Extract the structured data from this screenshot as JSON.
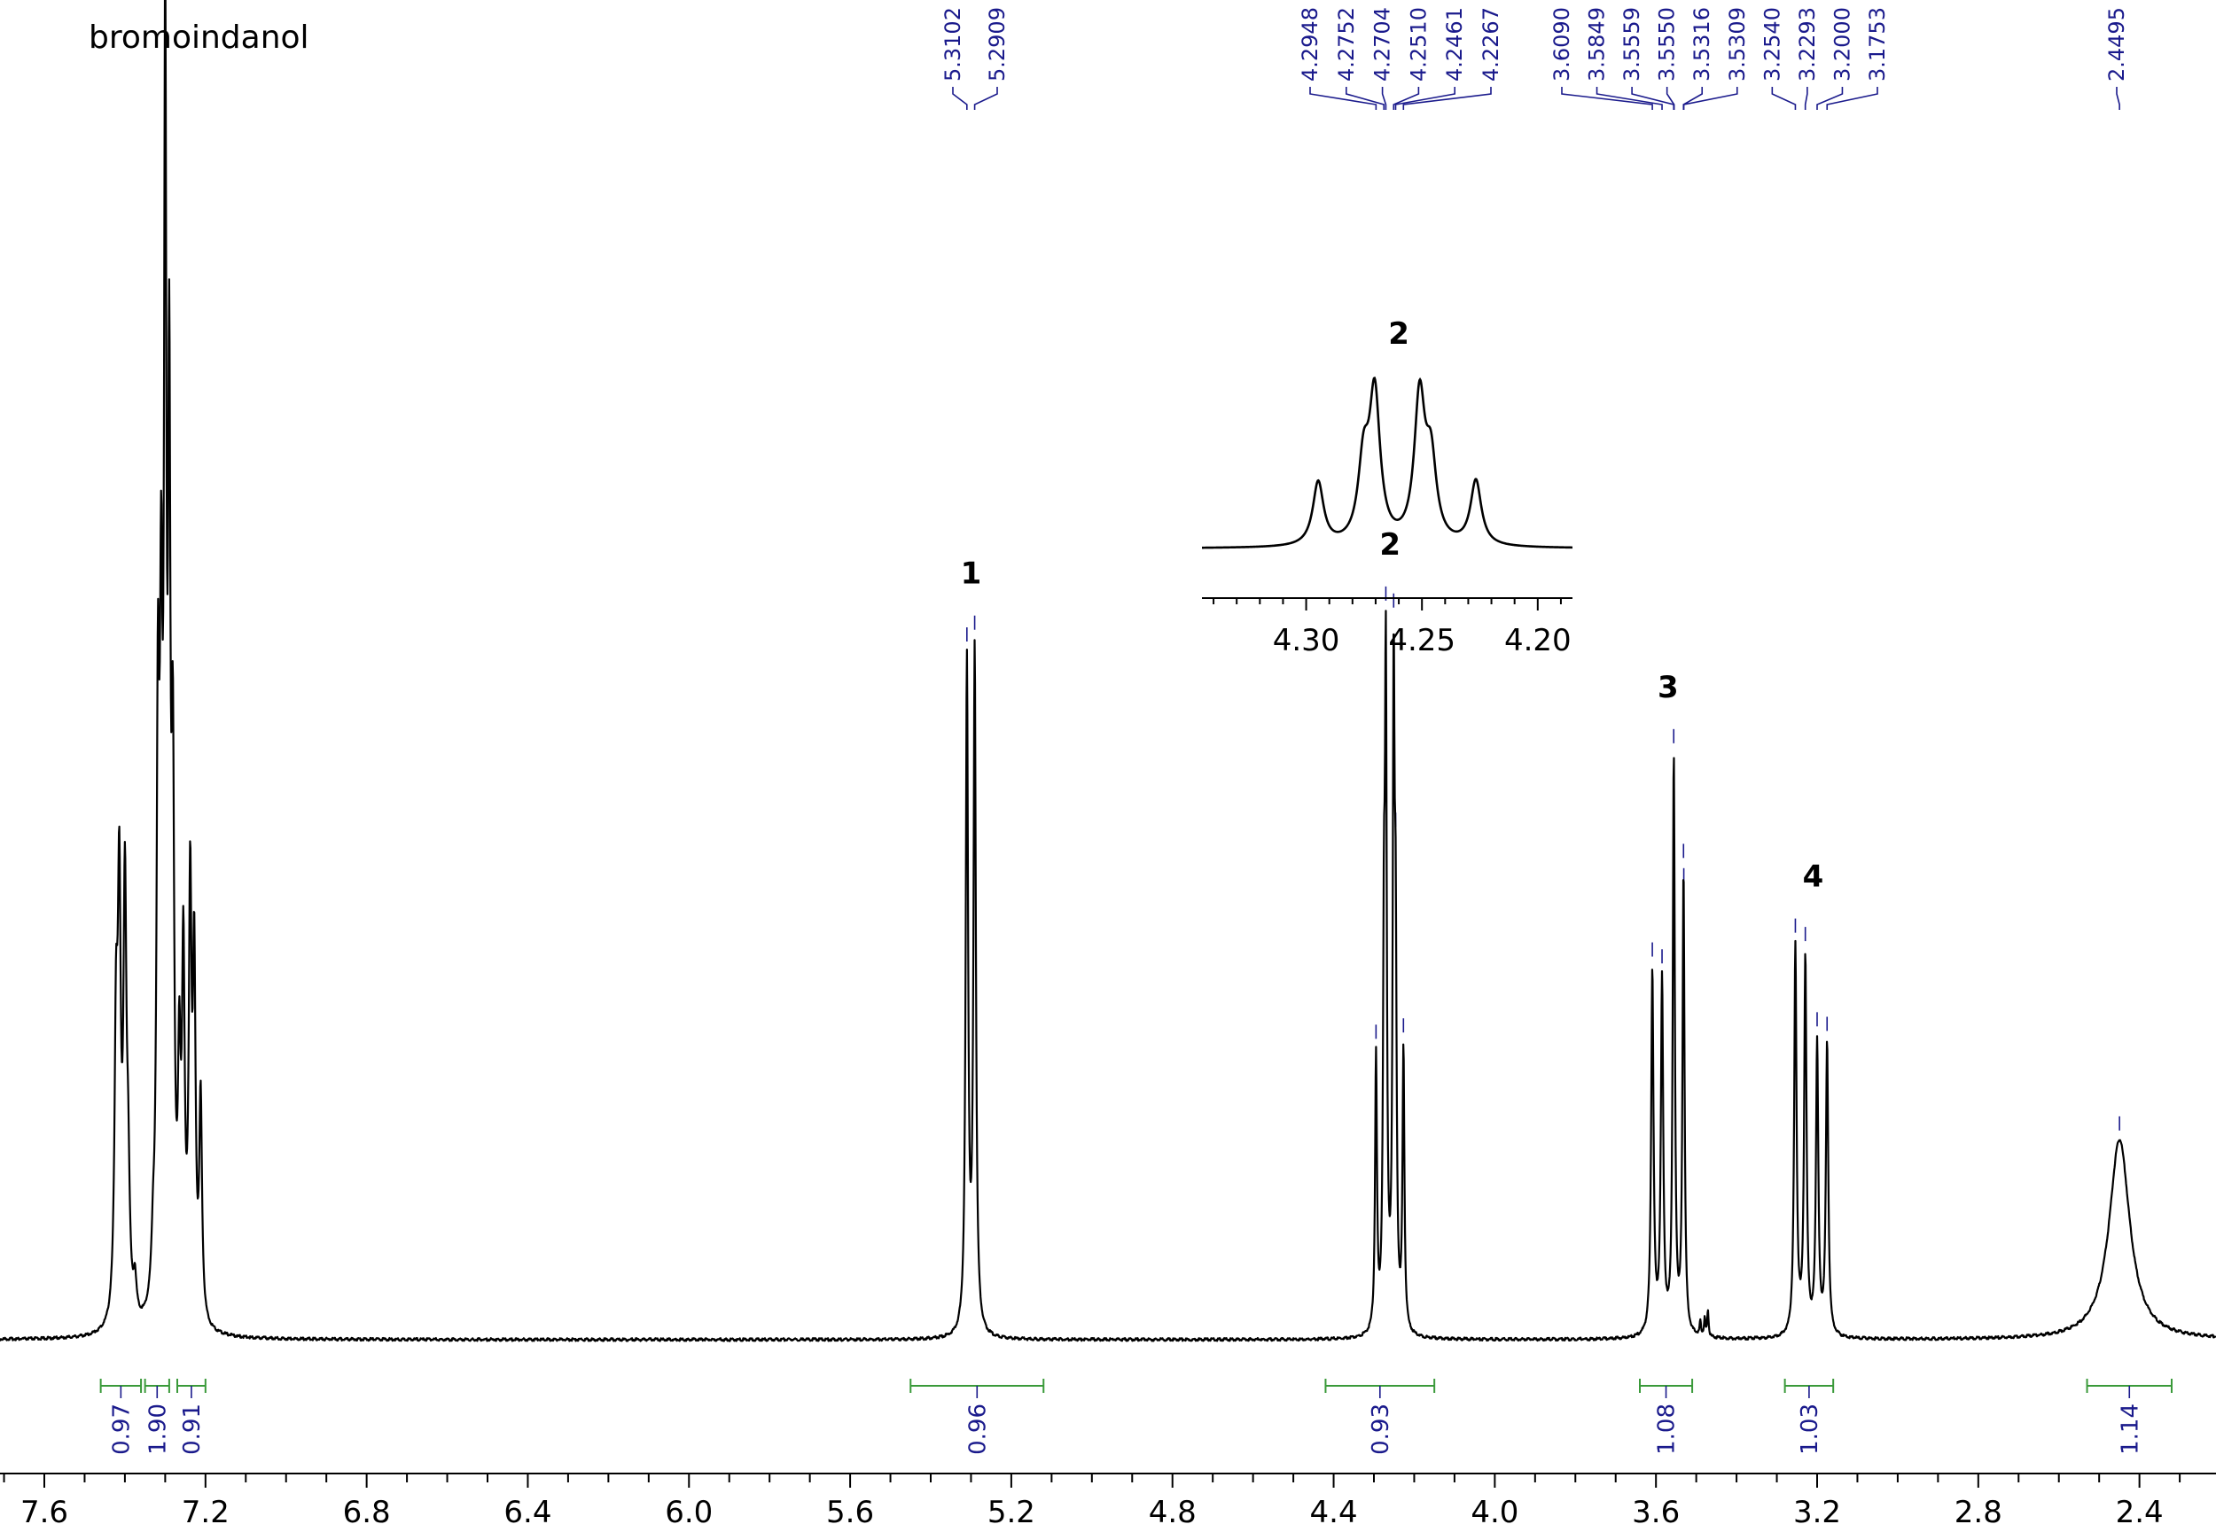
{
  "chart_data": {
    "type": "line",
    "title": "bromoindanol",
    "xlabel": "",
    "ylabel": "",
    "xlim": [
      7.71,
      2.21
    ],
    "xaxis_reversed": true,
    "xticks": [
      "7.6",
      "7.2",
      "6.8",
      "6.4",
      "6.0",
      "5.6",
      "5.2",
      "4.8",
      "4.4",
      "4.0",
      "3.6",
      "3.2",
      "2.8",
      "2.4"
    ],
    "grid": false,
    "peak_picks": [
      "5.3102",
      "5.2909",
      "4.2948",
      "4.2752",
      "4.2704",
      "4.2510",
      "4.2461",
      "4.2267",
      "3.6090",
      "3.5849",
      "3.5559",
      "3.5550",
      "3.5316",
      "3.5309",
      "3.2540",
      "3.2293",
      "3.2000",
      "3.1753",
      "2.4495"
    ],
    "peak_labels": [
      {
        "label": "1",
        "ppm": 5.3
      },
      {
        "label": "2",
        "ppm": 4.26
      },
      {
        "label": "3",
        "ppm": 3.57
      },
      {
        "label": "4",
        "ppm": 3.21
      }
    ],
    "integrals": [
      {
        "value": "0.97",
        "from": 7.46,
        "to": 7.36
      },
      {
        "value": "1.90",
        "from": 7.35,
        "to": 7.29
      },
      {
        "value": "0.91",
        "from": 7.27,
        "to": 7.2
      },
      {
        "value": "0.96",
        "from": 5.45,
        "to": 5.12
      },
      {
        "value": "0.93",
        "from": 4.42,
        "to": 4.15
      },
      {
        "value": "1.08",
        "from": 3.64,
        "to": 3.51
      },
      {
        "value": "1.03",
        "from": 3.28,
        "to": 3.16
      },
      {
        "value": "1.14",
        "from": 2.53,
        "to": 2.32
      }
    ],
    "spectrum_peaks": [
      {
        "ppm": 7.422,
        "h": 0.22,
        "w": 0.0045
      },
      {
        "ppm": 7.414,
        "h": 0.33,
        "w": 0.0045
      },
      {
        "ppm": 7.4,
        "h": 0.34,
        "w": 0.0045
      },
      {
        "ppm": 7.392,
        "h": 0.1,
        "w": 0.0045
      },
      {
        "ppm": 7.375,
        "h": 0.03,
        "w": 0.0045
      },
      {
        "ppm": 7.33,
        "h": 0.04,
        "w": 0.0045
      },
      {
        "ppm": 7.318,
        "h": 0.45,
        "w": 0.004
      },
      {
        "ppm": 7.31,
        "h": 0.47,
        "w": 0.004
      },
      {
        "ppm": 7.3,
        "h": 0.97,
        "w": 0.0035
      },
      {
        "ppm": 7.29,
        "h": 0.66,
        "w": 0.0035
      },
      {
        "ppm": 7.281,
        "h": 0.4,
        "w": 0.004
      },
      {
        "ppm": 7.265,
        "h": 0.18,
        "w": 0.004
      },
      {
        "ppm": 7.255,
        "h": 0.28,
        "w": 0.004
      },
      {
        "ppm": 7.238,
        "h": 0.34,
        "w": 0.004
      },
      {
        "ppm": 7.228,
        "h": 0.28,
        "w": 0.004
      },
      {
        "ppm": 7.212,
        "h": 0.18,
        "w": 0.004
      },
      {
        "ppm": 5.3102,
        "h": 0.55,
        "w": 0.0035
      },
      {
        "ppm": 5.2909,
        "h": 0.56,
        "w": 0.0035
      },
      {
        "ppm": 4.2948,
        "h": 0.225,
        "w": 0.0028
      },
      {
        "ppm": 4.2752,
        "h": 0.27,
        "w": 0.0028
      },
      {
        "ppm": 4.2704,
        "h": 0.515,
        "w": 0.0028
      },
      {
        "ppm": 4.251,
        "h": 0.51,
        "w": 0.0028
      },
      {
        "ppm": 4.2461,
        "h": 0.275,
        "w": 0.0028
      },
      {
        "ppm": 4.2267,
        "h": 0.23,
        "w": 0.0028
      },
      {
        "ppm": 3.609,
        "h": 0.3,
        "w": 0.0035
      },
      {
        "ppm": 3.5849,
        "h": 0.29,
        "w": 0.0035
      },
      {
        "ppm": 3.5559,
        "h": 0.39,
        "w": 0.003
      },
      {
        "ppm": 3.555,
        "h": 0.09,
        "w": 0.003
      },
      {
        "ppm": 3.5316,
        "h": 0.38,
        "w": 0.003
      },
      {
        "ppm": 3.49,
        "h": 0.012,
        "w": 0.002
      },
      {
        "ppm": 3.479,
        "h": 0.015,
        "w": 0.002
      },
      {
        "ppm": 3.471,
        "h": 0.022,
        "w": 0.002
      },
      {
        "ppm": 3.254,
        "h": 0.32,
        "w": 0.0035
      },
      {
        "ppm": 3.2293,
        "h": 0.31,
        "w": 0.0035
      },
      {
        "ppm": 3.2,
        "h": 0.24,
        "w": 0.0035
      },
      {
        "ppm": 3.1753,
        "h": 0.24,
        "w": 0.0035
      },
      {
        "ppm": 2.4495,
        "h": 0.165,
        "w": 0.031
      }
    ],
    "inset": {
      "label": "2",
      "xlim": [
        4.345,
        4.185
      ],
      "xticks": [
        "4.30",
        "4.25",
        "4.20"
      ]
    }
  },
  "colors": {
    "spectrum": "#000000",
    "peak_pick": "#1a1a8c",
    "integral": "#3a9a3a",
    "axis": "#000000"
  }
}
